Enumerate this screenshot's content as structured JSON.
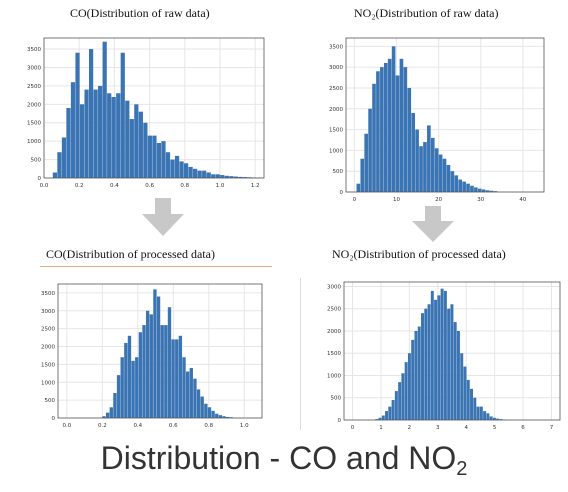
{
  "caption": {
    "text": "Distribution - CO and NO",
    "sub": "2"
  },
  "titles": {
    "co_raw": "CO(Distribution of raw data)",
    "no2_raw": "NO₂(Distribution of raw data)",
    "co_proc": "CO(Distribution of processed data)",
    "no2_proc": "NO₂(Distribution of processed data)"
  },
  "colors": {
    "bar": "#3b74b3",
    "grid": "#e6e6e6",
    "axis": "#555555",
    "arrow": "#c8c8c8"
  },
  "chart_data": [
    {
      "id": "co_raw",
      "type": "bar",
      "title": "CO(Distribution of raw data)",
      "xlim": [
        0.0,
        1.25
      ],
      "ylim": [
        0,
        3800
      ],
      "xticks": [
        0.0,
        0.2,
        0.4,
        0.6,
        0.8,
        1.0,
        1.2
      ],
      "xtick_decimals": 1,
      "yticks": [
        0,
        500,
        1000,
        1500,
        2000,
        2500,
        3000,
        3500
      ],
      "bin_start": 0.05,
      "bin_width": 0.0257,
      "counts": [
        150,
        700,
        1100,
        1900,
        2600,
        3400,
        2000,
        2400,
        3500,
        2400,
        2500,
        3700,
        2300,
        2200,
        2300,
        3400,
        2100,
        1600,
        2000,
        1800,
        1500,
        1150,
        1150,
        950,
        1000,
        700,
        500,
        600,
        450,
        400,
        300,
        250,
        200,
        200,
        150,
        100,
        100,
        80,
        60,
        50,
        40,
        30,
        25,
        20,
        15,
        10
      ]
    },
    {
      "id": "no2_raw",
      "type": "bar",
      "title": "NO₂(Distribution of raw data)",
      "xlim": [
        -2,
        45
      ],
      "ylim": [
        0,
        3700
      ],
      "xticks": [
        0,
        10,
        20,
        30,
        40
      ],
      "xtick_decimals": 0,
      "yticks": [
        0,
        500,
        1000,
        1500,
        2000,
        2500,
        3000,
        3500
      ],
      "bin_start": 0.5,
      "bin_width": 0.93,
      "counts": [
        200,
        800,
        1400,
        2000,
        2600,
        2900,
        3000,
        3100,
        3200,
        3500,
        2800,
        3200,
        3000,
        2500,
        1900,
        1500,
        1100,
        1200,
        1600,
        1300,
        1050,
        900,
        800,
        650,
        500,
        400,
        300,
        250,
        200,
        150,
        110,
        80,
        60,
        40,
        30,
        20
      ]
    },
    {
      "id": "co_proc",
      "type": "bar",
      "title": "CO(Distribution of processed data)",
      "xlim": [
        -0.05,
        1.1
      ],
      "ylim": [
        0,
        3750
      ],
      "xticks": [
        0.0,
        0.2,
        0.4,
        0.6,
        0.8,
        1.0
      ],
      "xtick_decimals": 1,
      "yticks": [
        0,
        500,
        1000,
        1500,
        2000,
        2500,
        3000,
        3500
      ],
      "bin_start": 0.2,
      "bin_width": 0.0205,
      "counts": [
        50,
        150,
        300,
        700,
        1200,
        1700,
        2100,
        2300,
        1600,
        1700,
        2400,
        2600,
        3000,
        2900,
        3600,
        3400,
        2600,
        2600,
        3100,
        2200,
        2200,
        2300,
        1700,
        1300,
        1400,
        1100,
        800,
        600,
        400,
        300,
        200,
        120,
        80,
        50,
        30,
        20
      ]
    },
    {
      "id": "no2_proc",
      "type": "bar",
      "title": "NO₂(Distribution of processed data)",
      "xlim": [
        -0.3,
        7.3
      ],
      "ylim": [
        0,
        3100
      ],
      "xticks": [
        0,
        1,
        2,
        3,
        4,
        5,
        6,
        7
      ],
      "xtick_decimals": 0,
      "yticks": [
        0,
        500,
        1000,
        1500,
        2000,
        2500,
        3000
      ],
      "bin_start": 0.8,
      "bin_width": 0.115,
      "counts": [
        20,
        50,
        100,
        200,
        300,
        450,
        650,
        850,
        1050,
        1300,
        1500,
        1800,
        2000,
        2100,
        2400,
        2500,
        2600,
        2900,
        2700,
        2800,
        2950,
        2900,
        2500,
        2600,
        2200,
        2000,
        1500,
        1200,
        900,
        700,
        500,
        300,
        300,
        200,
        150,
        80,
        50,
        30,
        20,
        10
      ]
    }
  ]
}
